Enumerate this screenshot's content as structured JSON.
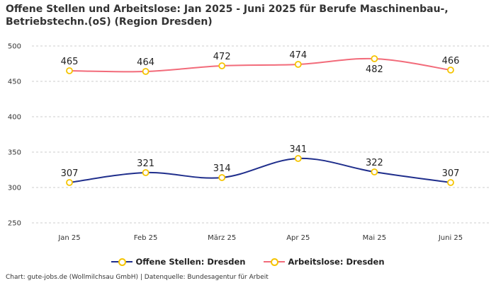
{
  "chart_title": "Offene Stellen und Arbeitslose: Jan 2025 - Juni 2025 für Berufe Maschinenbau-, Betriebstechn.(oS) (Region Dresden)",
  "credit": "Chart: gute-jobs.de (Wollmilchsau GmbH) | Datenquelle: Bundesagentur für Arbeit",
  "colors": {
    "offene_stellen": "#1f2e8c",
    "arbeitslose": "#f26b7a",
    "marker_border": "#f5c400",
    "grid": "#cccccc"
  },
  "chart_data": {
    "type": "line",
    "title": "Offene Stellen und Arbeitslose: Jan 2025 - Juni 2025 für Berufe Maschinenbau-, Betriebstechn.(oS) (Region Dresden)",
    "categories": [
      "Jan 25",
      "Feb 25",
      "März 25",
      "Apr 25",
      "Mai 25",
      "Juni 25"
    ],
    "yticks": [
      250,
      300,
      350,
      400,
      450,
      500
    ],
    "ylim": [
      240,
      510
    ],
    "grid": true,
    "legend_position": "bottom",
    "series": [
      {
        "name": "Offene Stellen: Dresden",
        "values": [
          307,
          321,
          314,
          341,
          322,
          307
        ],
        "labels": [
          "307",
          "321",
          "314",
          "341",
          "322",
          "307"
        ],
        "color": "#1f2e8c",
        "label_side": [
          "above",
          "above",
          "above",
          "above",
          "above",
          "above"
        ]
      },
      {
        "name": "Arbeitslose: Dresden",
        "values": [
          465,
          464,
          472,
          474,
          482,
          466
        ],
        "labels": [
          "465",
          "464",
          "472",
          "474",
          "482",
          "466"
        ],
        "color": "#f26b7a",
        "label_side": [
          "above",
          "above",
          "above",
          "above",
          "below",
          "above"
        ]
      }
    ]
  }
}
